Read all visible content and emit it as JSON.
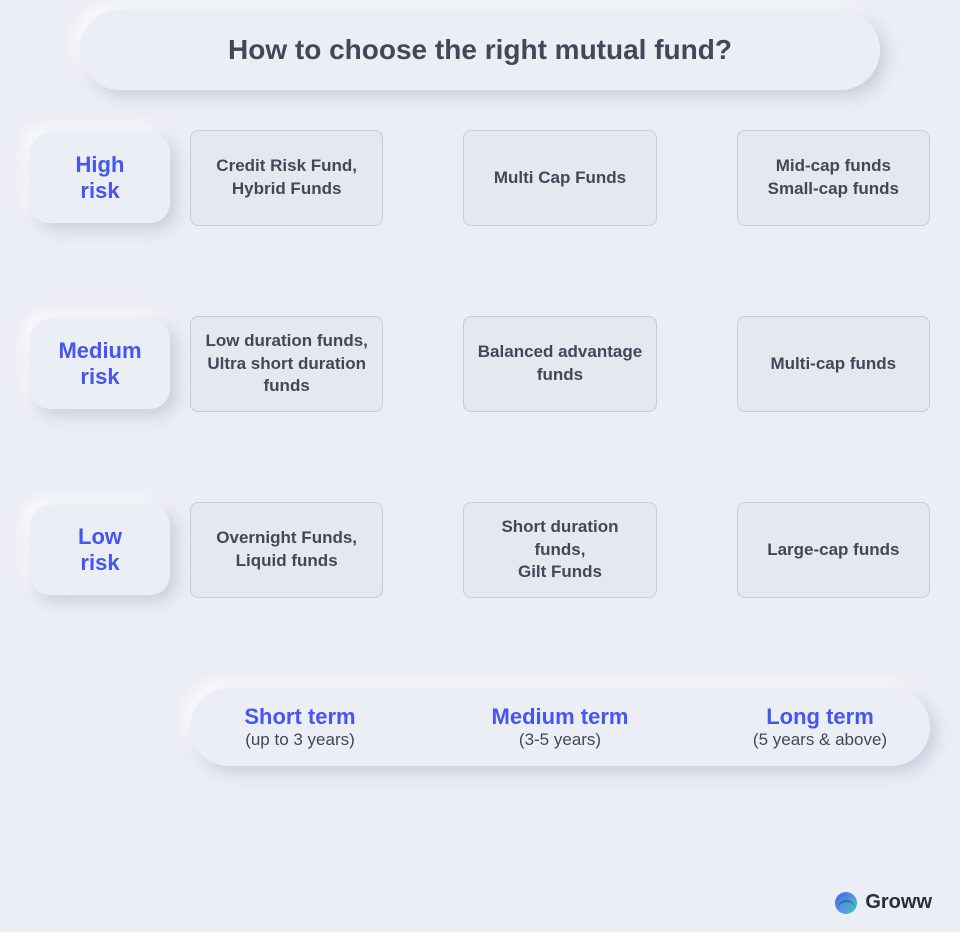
{
  "title": "How to choose the right mutual fund?",
  "colors": {
    "background": "#eceef5",
    "cell_bg": "#e6e8f0",
    "cell_border": "#c9ccda",
    "title_text": "#44475a",
    "cell_text": "#44475a",
    "accent": "#4556f5"
  },
  "risk_levels": [
    {
      "label": "High\nrisk"
    },
    {
      "label": "Medium\nrisk"
    },
    {
      "label": "Low\nrisk"
    }
  ],
  "time_horizons": [
    {
      "label": "Short term",
      "sub": "(up to 3 years)"
    },
    {
      "label": "Medium term",
      "sub": "(3-5 years)"
    },
    {
      "label": "Long term",
      "sub": "(5 years & above)"
    }
  ],
  "matrix": [
    [
      "Credit Risk Fund,\nHybrid Funds",
      "Multi Cap Funds",
      "Mid-cap funds\nSmall-cap funds"
    ],
    [
      "Low duration funds,\nUltra short duration funds",
      "Balanced advantage funds",
      "Multi-cap funds"
    ],
    [
      "Overnight Funds,\nLiquid funds",
      "Short duration funds,\nGilt Funds",
      "Large-cap funds"
    ]
  ],
  "brand": "Groww"
}
